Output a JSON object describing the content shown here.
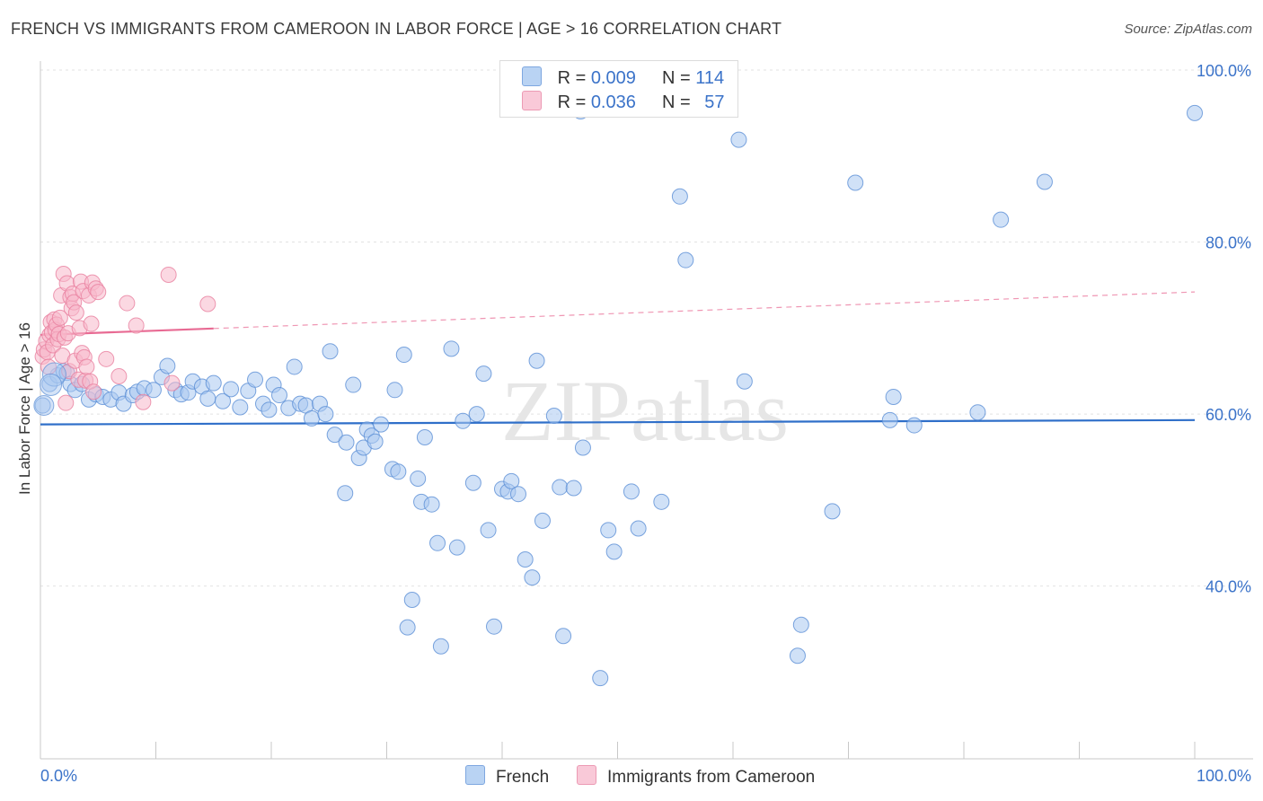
{
  "title": "FRENCH VS IMMIGRANTS FROM CAMEROON IN LABOR FORCE | AGE > 16 CORRELATION CHART",
  "source": "Source: ZipAtlas.com",
  "watermark": "ZIPatlas",
  "legend_stats": [
    {
      "r_label": "R = ",
      "r_value": "0.009",
      "n_label": "N = ",
      "n_value": "114",
      "color": "#a9c8f0"
    },
    {
      "r_label": "R = ",
      "r_value": "0.036",
      "n_label": "N = ",
      "n_value": "57",
      "color": "#f7b8cb"
    }
  ],
  "chart_data": {
    "type": "scatter",
    "xlabel": "",
    "ylabel": "In Labor Force | Age > 16",
    "xlim": [
      0,
      100
    ],
    "ylim": [
      20,
      102
    ],
    "x_tick_labels": [
      "0.0%",
      "100.0%"
    ],
    "y_tick_labels": [
      {
        "value": 40,
        "label": "40.0%"
      },
      {
        "value": 60,
        "label": "60.0%"
      },
      {
        "value": 80,
        "label": "80.0%"
      },
      {
        "value": 100,
        "label": "100.0%"
      }
    ],
    "grid": true,
    "series": [
      {
        "name": "French",
        "color": "#a9c8f0",
        "stroke": "#5b8fd6",
        "trend": {
          "x0": 0,
          "y0": 58.8,
          "x1": 100,
          "y1": 59.3,
          "dashed_from": null
        },
        "points": [
          [
            0.2,
            61
          ],
          [
            0.8,
            63.5
          ],
          [
            1.5,
            64.5
          ],
          [
            2,
            65
          ],
          [
            2.3,
            64.8
          ],
          [
            2.6,
            63.5
          ],
          [
            3,
            62.8
          ],
          [
            3.6,
            63.5
          ],
          [
            4.2,
            61.7
          ],
          [
            4.8,
            62.3
          ],
          [
            5.4,
            62
          ],
          [
            6.1,
            61.7
          ],
          [
            6.8,
            62.5
          ],
          [
            7.2,
            61.2
          ],
          [
            8,
            62.2
          ],
          [
            8.4,
            62.6
          ],
          [
            9,
            63
          ],
          [
            9.8,
            62.8
          ],
          [
            10.5,
            64.3
          ],
          [
            11,
            65.6
          ],
          [
            11.7,
            62.8
          ],
          [
            12.2,
            62.3
          ],
          [
            12.8,
            62.5
          ],
          [
            13.2,
            63.8
          ],
          [
            14,
            63.2
          ],
          [
            14.5,
            61.8
          ],
          [
            15,
            63.6
          ],
          [
            15.8,
            61.5
          ],
          [
            16.5,
            62.9
          ],
          [
            17.3,
            60.8
          ],
          [
            18,
            62.7
          ],
          [
            18.6,
            64
          ],
          [
            19.3,
            61.2
          ],
          [
            19.8,
            60.5
          ],
          [
            20.2,
            63.4
          ],
          [
            20.7,
            62.2
          ],
          [
            21.5,
            60.7
          ],
          [
            22,
            65.5
          ],
          [
            22.5,
            61.2
          ],
          [
            23,
            61
          ],
          [
            23.5,
            59.5
          ],
          [
            24.2,
            61.2
          ],
          [
            25.1,
            67.3
          ],
          [
            25.5,
            57.6
          ],
          [
            24.7,
            60
          ],
          [
            26.5,
            56.7
          ],
          [
            26.4,
            50.8
          ],
          [
            27.1,
            63.4
          ],
          [
            27.6,
            54.9
          ],
          [
            28,
            56.1
          ],
          [
            28.3,
            58.2
          ],
          [
            28.7,
            57.5
          ],
          [
            29,
            56.8
          ],
          [
            29.5,
            58.8
          ],
          [
            30.5,
            53.6
          ],
          [
            30.7,
            62.8
          ],
          [
            31,
            53.3
          ],
          [
            31.5,
            66.9
          ],
          [
            31.8,
            35.2
          ],
          [
            32.2,
            38.4
          ],
          [
            32.7,
            52.5
          ],
          [
            33,
            49.8
          ],
          [
            33.3,
            57.3
          ],
          [
            33.9,
            49.5
          ],
          [
            34.4,
            45
          ],
          [
            34.7,
            33
          ],
          [
            35.6,
            67.6
          ],
          [
            36.1,
            44.5
          ],
          [
            36.6,
            59.2
          ],
          [
            37.5,
            52
          ],
          [
            37.8,
            60
          ],
          [
            38.4,
            64.7
          ],
          [
            38.8,
            46.5
          ],
          [
            39.3,
            35.3
          ],
          [
            40,
            51.3
          ],
          [
            40.5,
            51
          ],
          [
            40.8,
            52.2
          ],
          [
            41.4,
            50.7
          ],
          [
            42,
            43.1
          ],
          [
            42.6,
            41
          ],
          [
            43,
            66.2
          ],
          [
            43.5,
            47.6
          ],
          [
            44.5,
            59.8
          ],
          [
            45,
            51.5
          ],
          [
            45.3,
            34.2
          ],
          [
            46.2,
            51.4
          ],
          [
            47,
            56.1
          ],
          [
            46.8,
            95.2
          ],
          [
            48.5,
            29.3
          ],
          [
            49.2,
            46.5
          ],
          [
            49.7,
            44
          ],
          [
            51.2,
            51
          ],
          [
            51.8,
            46.7
          ],
          [
            53.8,
            49.8
          ],
          [
            55.4,
            85.3
          ],
          [
            55.9,
            77.9
          ],
          [
            60.5,
            91.9
          ],
          [
            61,
            63.8
          ],
          [
            65.6,
            31.9
          ],
          [
            65.9,
            35.5
          ],
          [
            68.6,
            48.7
          ],
          [
            70.6,
            86.9
          ],
          [
            73.6,
            59.3
          ],
          [
            73.9,
            62
          ],
          [
            75.7,
            58.7
          ],
          [
            81.2,
            60.2
          ],
          [
            83.2,
            82.6
          ],
          [
            87,
            87
          ],
          [
            100,
            95
          ]
        ]
      },
      {
        "name": "Immigrants from Cameroon",
        "color": "#f7b8cb",
        "stroke": "#e87f9f",
        "trend": {
          "x0": 0,
          "y0": 69.2,
          "x1": 100,
          "y1": 74.2,
          "dashed_from": 15
        },
        "points": [
          [
            0.2,
            66.7
          ],
          [
            0.3,
            67.5
          ],
          [
            0.5,
            68.5
          ],
          [
            0.6,
            67.2
          ],
          [
            0.7,
            65.5
          ],
          [
            0.8,
            69.2
          ],
          [
            0.9,
            70.7
          ],
          [
            1.0,
            69.5
          ],
          [
            1.1,
            68
          ],
          [
            1.2,
            71
          ],
          [
            1.3,
            69.8
          ],
          [
            1.4,
            70.4
          ],
          [
            1.5,
            68.7
          ],
          [
            1.6,
            69.3
          ],
          [
            1.7,
            71.2
          ],
          [
            1.8,
            73.8
          ],
          [
            1.9,
            66.8
          ],
          [
            2.0,
            76.3
          ],
          [
            2.1,
            68.9
          ],
          [
            2.2,
            61.3
          ],
          [
            2.3,
            75.2
          ],
          [
            2.4,
            69.4
          ],
          [
            2.5,
            65
          ],
          [
            2.6,
            73.6
          ],
          [
            2.7,
            72.3
          ],
          [
            2.8,
            74
          ],
          [
            2.9,
            73
          ],
          [
            3.0,
            66.2
          ],
          [
            3.1,
            71.8
          ],
          [
            3.3,
            64
          ],
          [
            3.4,
            70
          ],
          [
            3.5,
            75.4
          ],
          [
            3.6,
            67.1
          ],
          [
            3.7,
            74.3
          ],
          [
            3.8,
            66.6
          ],
          [
            3.9,
            63.9
          ],
          [
            4.0,
            65.5
          ],
          [
            4.2,
            73.8
          ],
          [
            4.3,
            63.8
          ],
          [
            4.4,
            70.5
          ],
          [
            4.5,
            75.3
          ],
          [
            4.6,
            62.6
          ],
          [
            4.8,
            74.6
          ],
          [
            5.0,
            74.2
          ],
          [
            5.7,
            66.4
          ],
          [
            6.8,
            64.4
          ],
          [
            7.5,
            72.9
          ],
          [
            8.3,
            70.3
          ],
          [
            8.9,
            61.4
          ],
          [
            11.1,
            76.2
          ],
          [
            11.4,
            63.6
          ],
          [
            14.5,
            72.8
          ]
        ]
      }
    ]
  }
}
